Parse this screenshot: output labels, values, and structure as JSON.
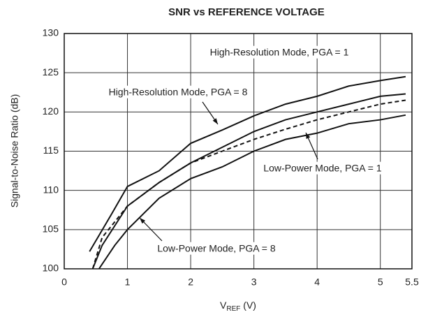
{
  "chart_data": {
    "type": "line",
    "title": "SNR vs REFERENCE VOLTAGE",
    "y_label": "Signal-to-Noise Ratio (dB)",
    "x_label": {
      "main": "V",
      "sub": "REF",
      "unit": " (V)"
    },
    "xlim": [
      0,
      5.5
    ],
    "xticks": [
      0,
      1,
      2,
      3,
      4,
      5,
      5.5
    ],
    "ylim": [
      100,
      130
    ],
    "yticks": [
      100,
      105,
      110,
      115,
      120,
      125,
      130
    ],
    "grid": true,
    "series": [
      {
        "name": "High-Resolution Mode, PGA = 1",
        "color": "#111",
        "dashed": false,
        "x": [
          0.4,
          0.75,
          1,
          1.5,
          2,
          2.5,
          3,
          3.5,
          4,
          4.5,
          5,
          5.4
        ],
        "values": [
          102.2,
          107,
          110.5,
          112.5,
          116,
          117.7,
          119.5,
          121,
          122,
          123.3,
          124,
          124.5
        ]
      },
      {
        "name": "High-Resolution Mode, PGA = 8",
        "color": "#111",
        "dashed": false,
        "x": [
          0.45,
          0.6,
          1,
          1.5,
          2,
          2.5,
          3,
          3.5,
          4,
          4.5,
          5,
          5.4
        ],
        "values": [
          100,
          103,
          108,
          111,
          113.5,
          115.5,
          117.5,
          119,
          120,
          121,
          122,
          122.3
        ]
      },
      {
        "name": "Low-Power Mode, PGA = 1",
        "color": "#111",
        "dashed": true,
        "x": [
          0.45,
          0.6,
          1,
          1.5,
          2,
          2.5,
          3,
          3.5,
          4,
          4.5,
          5,
          5.4
        ],
        "values": [
          100,
          104,
          108,
          111,
          113.5,
          115,
          116.5,
          117.8,
          119,
          120,
          121,
          121.5
        ]
      },
      {
        "name": "Low-Power Mode, PGA = 8",
        "color": "#111",
        "dashed": false,
        "x": [
          0.55,
          0.8,
          1,
          1.5,
          2,
          2.5,
          3,
          3.5,
          4,
          4.5,
          5,
          5.4
        ],
        "values": [
          100,
          103,
          105,
          109,
          111.5,
          113,
          115,
          116.5,
          117.3,
          118.5,
          119,
          119.6
        ]
      }
    ]
  }
}
